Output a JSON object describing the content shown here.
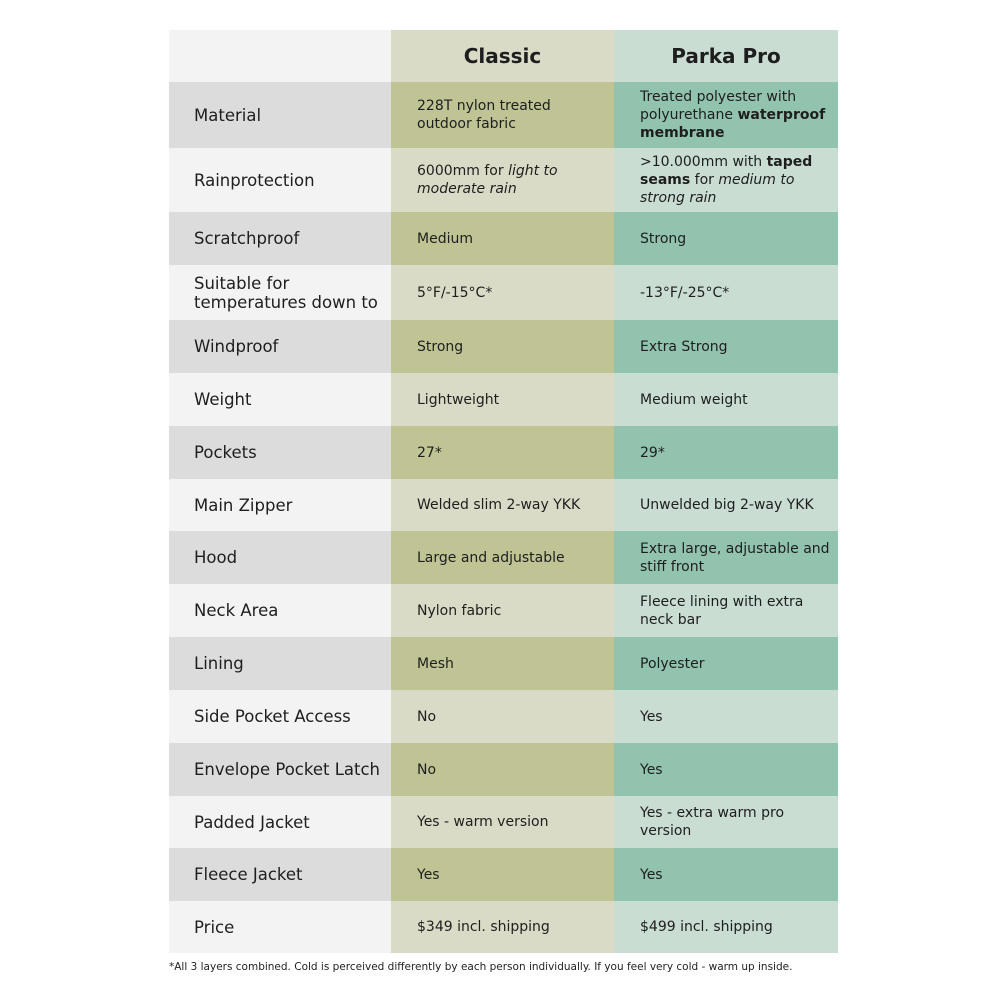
{
  "header": {
    "blank": "",
    "classic": "Classic",
    "parka": "Parka Pro"
  },
  "colors": {
    "label_dark": "#dcdcdc",
    "label_light": "#f3f3f3",
    "classic_dark": "#c0c495",
    "classic_light": "#dadbc7",
    "parka_dark": "#92c3ae",
    "parka_light": "#c9ddd3"
  },
  "rows": [
    {
      "label": "Material",
      "classic": [
        {
          "t": "228T nylon treated outdoor fabric"
        }
      ],
      "parka": [
        {
          "t": "Treated polyester with polyurethane "
        },
        {
          "t": "waterproof membrane",
          "s": "b"
        }
      ]
    },
    {
      "label": "Rainprotection",
      "classic": [
        {
          "t": "6000mm for "
        },
        {
          "t": "light to moderate rain",
          "s": "i"
        }
      ],
      "parka": [
        {
          "t": ">10.000mm with "
        },
        {
          "t": "taped seams",
          "s": "b"
        },
        {
          "t": " for "
        },
        {
          "t": "medium to strong rain",
          "s": "i"
        }
      ]
    },
    {
      "label": "Scratchproof",
      "classic": [
        {
          "t": "Medium"
        }
      ],
      "parka": [
        {
          "t": "Strong"
        }
      ]
    },
    {
      "label": "Suitable for temperatures down to",
      "classic": [
        {
          "t": "5°F/-15°C*"
        }
      ],
      "parka": [
        {
          "t": "-13°F/-25°C*"
        }
      ]
    },
    {
      "label": "Windproof",
      "classic": [
        {
          "t": "Strong"
        }
      ],
      "parka": [
        {
          "t": "Extra Strong"
        }
      ]
    },
    {
      "label": "Weight",
      "classic": [
        {
          "t": "Lightweight"
        }
      ],
      "parka": [
        {
          "t": "Medium weight"
        }
      ]
    },
    {
      "label": "Pockets",
      "classic": [
        {
          "t": "27*"
        }
      ],
      "parka": [
        {
          "t": "29*"
        }
      ]
    },
    {
      "label": "Main Zipper",
      "classic": [
        {
          "t": "Welded slim 2-way YKK"
        }
      ],
      "parka": [
        {
          "t": "Unwelded big 2-way YKK"
        }
      ]
    },
    {
      "label": "Hood",
      "classic": [
        {
          "t": "Large and adjustable"
        }
      ],
      "parka": [
        {
          "t": "Extra large, adjustable and stiff front"
        }
      ]
    },
    {
      "label": "Neck Area",
      "classic": [
        {
          "t": "Nylon fabric"
        }
      ],
      "parka": [
        {
          "t": "Fleece lining with extra neck bar"
        }
      ]
    },
    {
      "label": "Lining",
      "classic": [
        {
          "t": "Mesh"
        }
      ],
      "parka": [
        {
          "t": "Polyester"
        }
      ]
    },
    {
      "label": "Side Pocket Access",
      "classic": [
        {
          "t": "No"
        }
      ],
      "parka": [
        {
          "t": "Yes"
        }
      ]
    },
    {
      "label": "Envelope Pocket Latch",
      "classic": [
        {
          "t": "No"
        }
      ],
      "parka": [
        {
          "t": "Yes"
        }
      ]
    },
    {
      "label": "Padded Jacket",
      "classic": [
        {
          "t": "Yes - warm version"
        }
      ],
      "parka": [
        {
          "t": "Yes - extra warm pro version"
        }
      ]
    },
    {
      "label": "Fleece Jacket",
      "classic": [
        {
          "t": "Yes"
        }
      ],
      "parka": [
        {
          "t": "Yes"
        }
      ]
    },
    {
      "label": "Price",
      "classic": [
        {
          "t": "$349 incl. shipping"
        }
      ],
      "parka": [
        {
          "t": "$499 incl. shipping"
        }
      ]
    }
  ],
  "footnote": "*All 3 layers combined. Cold is perceived differently by each person individually. If you feel very cold - warm up inside."
}
